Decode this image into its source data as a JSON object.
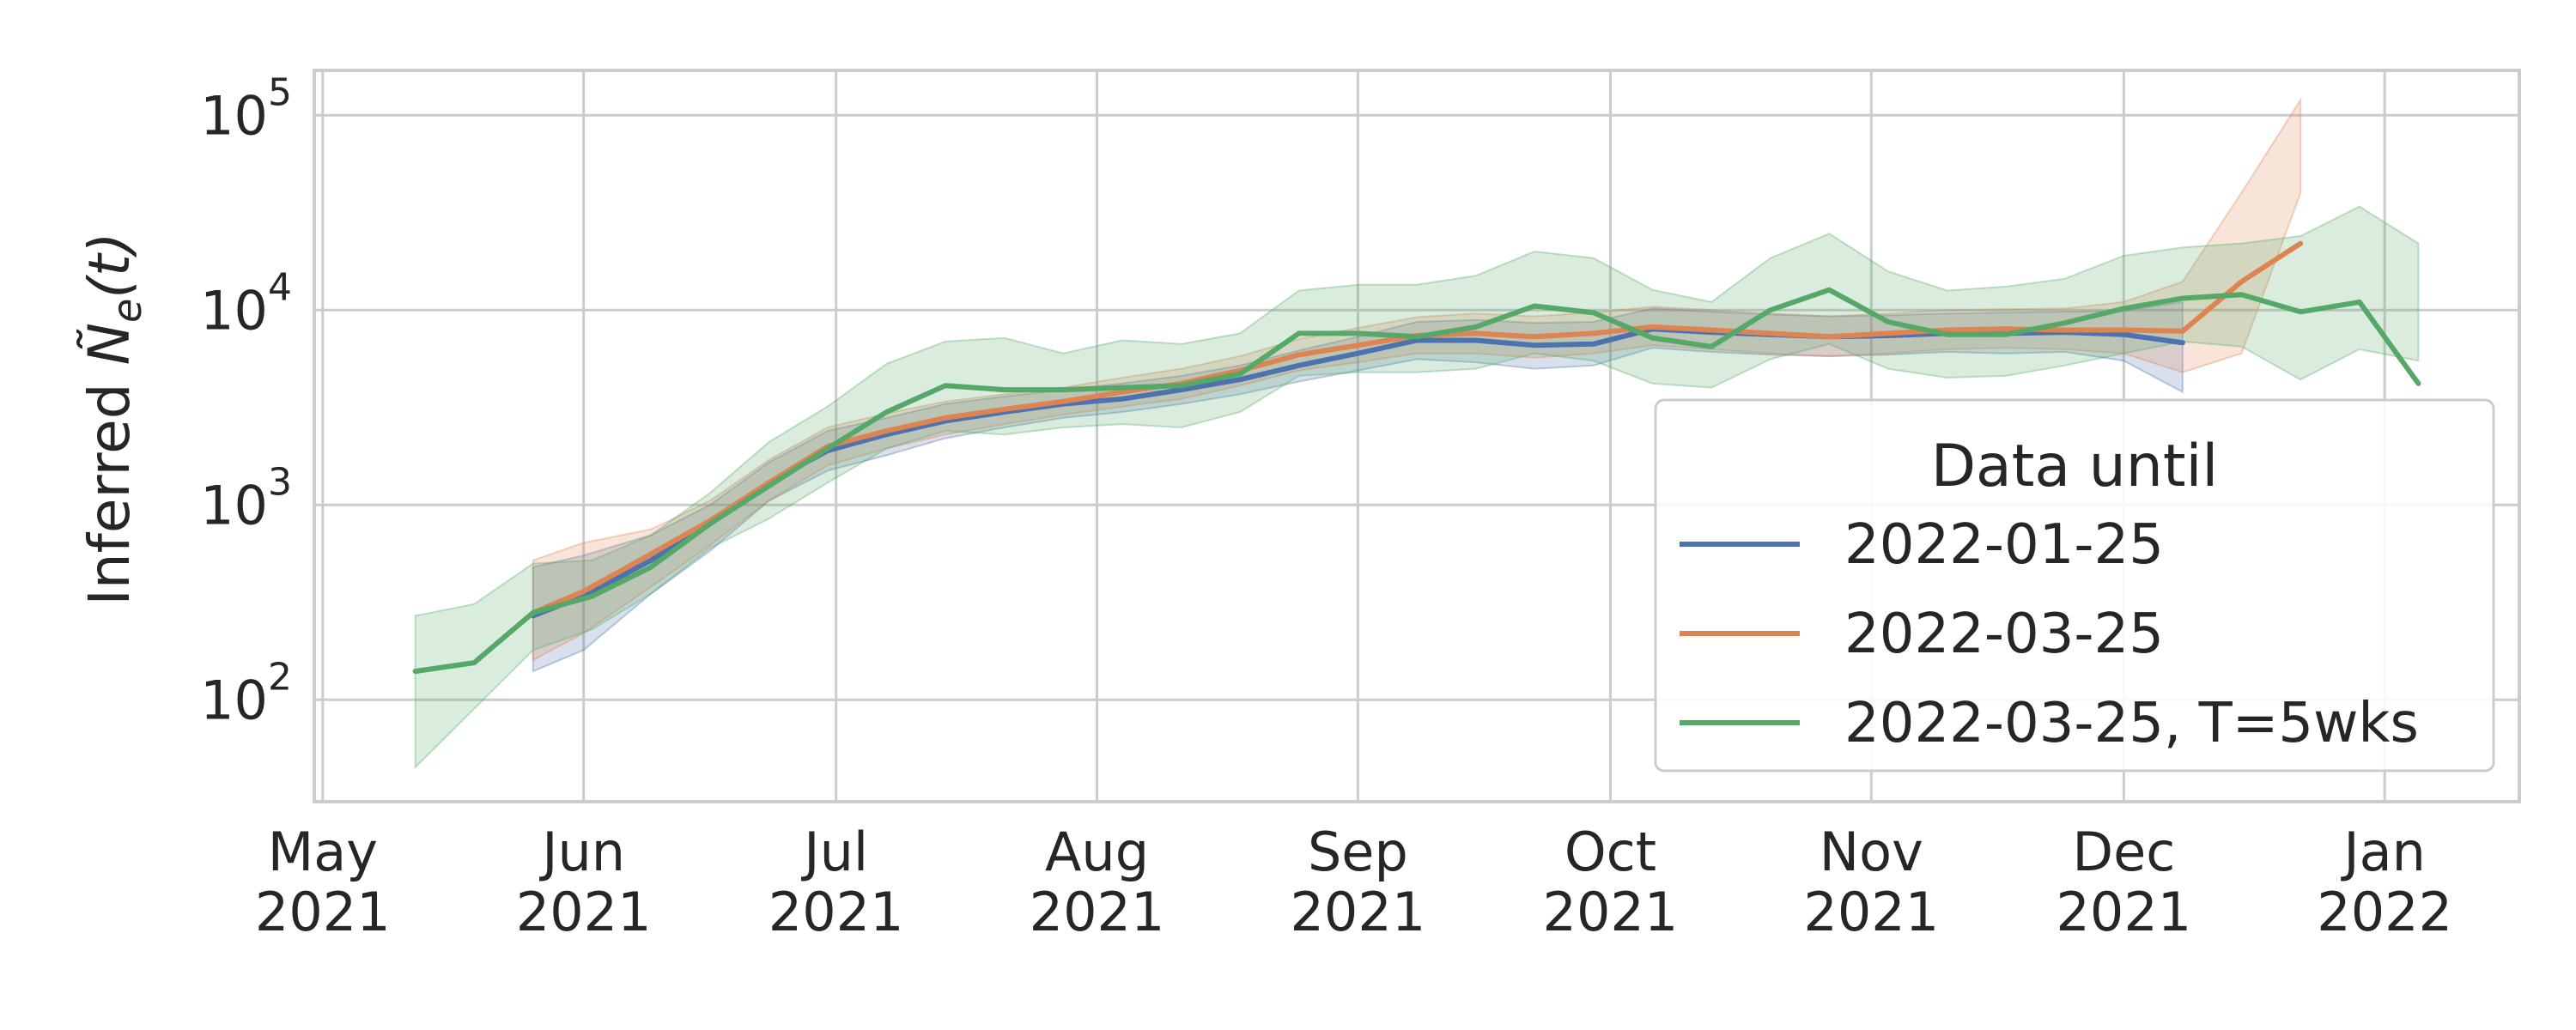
{
  "chart_data": {
    "type": "line",
    "title": "",
    "xlabel": "",
    "ylabel": {
      "prefix": "Inferred ",
      "symbol": "Ñ",
      "subscript": "e",
      "suffix": "(t)"
    },
    "yscale": "log",
    "ylim": [
      30,
      170000
    ],
    "xlim": [
      "2021-04-30",
      "2022-01-17"
    ],
    "grid": true,
    "x_ticks": [
      {
        "date": "2021-05-01",
        "label": [
          "May",
          "2021"
        ]
      },
      {
        "date": "2021-06-01",
        "label": [
          "Jun",
          "2021"
        ]
      },
      {
        "date": "2021-07-01",
        "label": [
          "Jul",
          "2021"
        ]
      },
      {
        "date": "2021-08-01",
        "label": [
          "Aug",
          "2021"
        ]
      },
      {
        "date": "2021-09-01",
        "label": [
          "Sep",
          "2021"
        ]
      },
      {
        "date": "2021-10-01",
        "label": [
          "Oct",
          "2021"
        ]
      },
      {
        "date": "2021-11-01",
        "label": [
          "Nov",
          "2021"
        ]
      },
      {
        "date": "2021-12-01",
        "label": [
          "Dec",
          "2021"
        ]
      },
      {
        "date": "2022-01-01",
        "label": [
          "Jan",
          "2022"
        ]
      }
    ],
    "y_ticks": [
      {
        "value": 100,
        "base": "10",
        "exp": "2"
      },
      {
        "value": 1000,
        "base": "10",
        "exp": "3"
      },
      {
        "value": 10000,
        "base": "10",
        "exp": "4"
      },
      {
        "value": 100000,
        "base": "10",
        "exp": "5"
      }
    ],
    "legend": {
      "title": "Data until",
      "location": "lower-right"
    },
    "series": [
      {
        "name": "2022-01-25",
        "color": "#4c72b0",
        "points": [
          {
            "date": "2021-05-26",
            "value": 270,
            "low": 140,
            "high": 480
          },
          {
            "date": "2021-06-01",
            "value": 340,
            "low": 180,
            "high": 550
          },
          {
            "date": "2021-06-09",
            "value": 520,
            "low": 350,
            "high": 700
          },
          {
            "date": "2021-06-16",
            "value": 800,
            "low": 580,
            "high": 1000
          },
          {
            "date": "2021-06-23",
            "value": 1300,
            "low": 1050,
            "high": 1650
          },
          {
            "date": "2021-06-30",
            "value": 1900,
            "low": 1500,
            "high": 2400
          },
          {
            "date": "2021-07-07",
            "value": 2300,
            "low": 1800,
            "high": 2800
          },
          {
            "date": "2021-07-14",
            "value": 2700,
            "low": 2200,
            "high": 3300
          },
          {
            "date": "2021-07-21",
            "value": 3000,
            "low": 2500,
            "high": 3600
          },
          {
            "date": "2021-07-28",
            "value": 3300,
            "low": 2800,
            "high": 3900
          },
          {
            "date": "2021-08-04",
            "value": 3500,
            "low": 3000,
            "high": 4200
          },
          {
            "date": "2021-08-11",
            "value": 3900,
            "low": 3300,
            "high": 4600
          },
          {
            "date": "2021-08-18",
            "value": 4400,
            "low": 3700,
            "high": 5200
          },
          {
            "date": "2021-08-25",
            "value": 5200,
            "low": 4300,
            "high": 6200
          },
          {
            "date": "2021-09-01",
            "value": 6000,
            "low": 4900,
            "high": 7300
          },
          {
            "date": "2021-09-08",
            "value": 7000,
            "low": 5600,
            "high": 8700
          },
          {
            "date": "2021-09-15",
            "value": 7000,
            "low": 5400,
            "high": 8900
          },
          {
            "date": "2021-09-22",
            "value": 6600,
            "low": 5000,
            "high": 8600
          },
          {
            "date": "2021-09-29",
            "value": 6700,
            "low": 5200,
            "high": 8700
          },
          {
            "date": "2021-10-06",
            "value": 8000,
            "low": 6400,
            "high": 10200
          },
          {
            "date": "2021-10-13",
            "value": 7700,
            "low": 6100,
            "high": 9800
          },
          {
            "date": "2021-10-20",
            "value": 7500,
            "low": 5900,
            "high": 9500
          },
          {
            "date": "2021-10-27",
            "value": 7300,
            "low": 5800,
            "high": 9300
          },
          {
            "date": "2021-11-03",
            "value": 7400,
            "low": 5900,
            "high": 9400
          },
          {
            "date": "2021-11-10",
            "value": 7600,
            "low": 6100,
            "high": 9600
          },
          {
            "date": "2021-11-17",
            "value": 7600,
            "low": 6000,
            "high": 9700
          },
          {
            "date": "2021-11-24",
            "value": 7700,
            "low": 6100,
            "high": 9800
          },
          {
            "date": "2021-12-01",
            "value": 7500,
            "low": 5500,
            "high": 9900
          },
          {
            "date": "2021-12-08",
            "value": 6800,
            "low": 3800,
            "high": 11000
          }
        ]
      },
      {
        "name": "2022-03-25",
        "color": "#dd8452",
        "points": [
          {
            "date": "2021-05-26",
            "value": 280,
            "low": 160,
            "high": 520
          },
          {
            "date": "2021-06-01",
            "value": 360,
            "low": 220,
            "high": 640
          },
          {
            "date": "2021-06-09",
            "value": 560,
            "low": 380,
            "high": 750
          },
          {
            "date": "2021-06-16",
            "value": 830,
            "low": 620,
            "high": 1050
          },
          {
            "date": "2021-06-23",
            "value": 1300,
            "low": 1050,
            "high": 1700
          },
          {
            "date": "2021-06-30",
            "value": 2000,
            "low": 1600,
            "high": 2500
          },
          {
            "date": "2021-07-07",
            "value": 2400,
            "low": 1950,
            "high": 2950
          },
          {
            "date": "2021-07-14",
            "value": 2800,
            "low": 2300,
            "high": 3400
          },
          {
            "date": "2021-07-21",
            "value": 3100,
            "low": 2600,
            "high": 3700
          },
          {
            "date": "2021-07-28",
            "value": 3400,
            "low": 2900,
            "high": 4000
          },
          {
            "date": "2021-08-04",
            "value": 3800,
            "low": 3200,
            "high": 4500
          },
          {
            "date": "2021-08-11",
            "value": 4200,
            "low": 3500,
            "high": 5000
          },
          {
            "date": "2021-08-18",
            "value": 4900,
            "low": 4100,
            "high": 5800
          },
          {
            "date": "2021-08-25",
            "value": 5900,
            "low": 4900,
            "high": 7100
          },
          {
            "date": "2021-09-01",
            "value": 6600,
            "low": 5400,
            "high": 8100
          },
          {
            "date": "2021-09-08",
            "value": 7400,
            "low": 6000,
            "high": 9200
          },
          {
            "date": "2021-09-15",
            "value": 7600,
            "low": 6000,
            "high": 9600
          },
          {
            "date": "2021-09-22",
            "value": 7300,
            "low": 5700,
            "high": 9300
          },
          {
            "date": "2021-09-29",
            "value": 7600,
            "low": 6000,
            "high": 9700
          },
          {
            "date": "2021-10-06",
            "value": 8200,
            "low": 6600,
            "high": 10400
          },
          {
            "date": "2021-10-13",
            "value": 7900,
            "low": 6300,
            "high": 10000
          },
          {
            "date": "2021-10-20",
            "value": 7600,
            "low": 6000,
            "high": 9600
          },
          {
            "date": "2021-10-27",
            "value": 7300,
            "low": 5800,
            "high": 9300
          },
          {
            "date": "2021-11-03",
            "value": 7600,
            "low": 6000,
            "high": 9600
          },
          {
            "date": "2021-11-10",
            "value": 7900,
            "low": 6300,
            "high": 10000
          },
          {
            "date": "2021-11-17",
            "value": 8000,
            "low": 6400,
            "high": 10100
          },
          {
            "date": "2021-11-24",
            "value": 7900,
            "low": 6300,
            "high": 10200
          },
          {
            "date": "2021-12-01",
            "value": 7900,
            "low": 6000,
            "high": 11000
          },
          {
            "date": "2021-12-08",
            "value": 7800,
            "low": 4800,
            "high": 14000
          },
          {
            "date": "2021-12-15",
            "value": 14000,
            "low": 6000,
            "high": 40000
          },
          {
            "date": "2021-12-22",
            "value": 22000,
            "low": 40000,
            "high": 120000
          }
        ]
      },
      {
        "name": "2022-03-25, T=5wks",
        "color": "#55a868",
        "points": [
          {
            "date": "2021-05-12",
            "value": 140,
            "low": 45,
            "high": 270
          },
          {
            "date": "2021-05-19",
            "value": 155,
            "low": 90,
            "high": 310
          },
          {
            "date": "2021-05-26",
            "value": 280,
            "low": 180,
            "high": 500
          },
          {
            "date": "2021-06-02",
            "value": 340,
            "low": 230,
            "high": 520
          },
          {
            "date": "2021-06-09",
            "value": 480,
            "low": 350,
            "high": 700
          },
          {
            "date": "2021-06-16",
            "value": 800,
            "low": 600,
            "high": 1150
          },
          {
            "date": "2021-06-23",
            "value": 1250,
            "low": 850,
            "high": 2100
          },
          {
            "date": "2021-06-30",
            "value": 1950,
            "low": 1300,
            "high": 3200
          },
          {
            "date": "2021-07-07",
            "value": 3000,
            "low": 1950,
            "high": 5300
          },
          {
            "date": "2021-07-14",
            "value": 4100,
            "low": 2400,
            "high": 6900
          },
          {
            "date": "2021-07-21",
            "value": 3900,
            "low": 2300,
            "high": 7200
          },
          {
            "date": "2021-07-28",
            "value": 3900,
            "low": 2500,
            "high": 6000
          },
          {
            "date": "2021-08-04",
            "value": 4000,
            "low": 2600,
            "high": 7000
          },
          {
            "date": "2021-08-11",
            "value": 4100,
            "low": 2500,
            "high": 6700
          },
          {
            "date": "2021-08-18",
            "value": 4700,
            "low": 3000,
            "high": 7600
          },
          {
            "date": "2021-08-25",
            "value": 7600,
            "low": 4600,
            "high": 12600
          },
          {
            "date": "2021-09-01",
            "value": 7600,
            "low": 4800,
            "high": 13500
          },
          {
            "date": "2021-09-08",
            "value": 7300,
            "low": 4800,
            "high": 13500
          },
          {
            "date": "2021-09-15",
            "value": 8200,
            "low": 5000,
            "high": 15000
          },
          {
            "date": "2021-09-22",
            "value": 10500,
            "low": 6000,
            "high": 20000
          },
          {
            "date": "2021-09-29",
            "value": 9700,
            "low": 5500,
            "high": 18500
          },
          {
            "date": "2021-10-06",
            "value": 7200,
            "low": 4200,
            "high": 12700
          },
          {
            "date": "2021-10-13",
            "value": 6500,
            "low": 4000,
            "high": 11000
          },
          {
            "date": "2021-10-20",
            "value": 10000,
            "low": 5600,
            "high": 18500
          },
          {
            "date": "2021-10-27",
            "value": 12700,
            "low": 6700,
            "high": 24700
          },
          {
            "date": "2021-11-03",
            "value": 8700,
            "low": 5000,
            "high": 15800
          },
          {
            "date": "2021-11-10",
            "value": 7500,
            "low": 4500,
            "high": 12600
          },
          {
            "date": "2021-11-17",
            "value": 7500,
            "low": 4600,
            "high": 13200
          },
          {
            "date": "2021-11-24",
            "value": 8600,
            "low": 5200,
            "high": 14500
          },
          {
            "date": "2021-12-01",
            "value": 10200,
            "low": 6000,
            "high": 19000
          },
          {
            "date": "2021-12-08",
            "value": 11500,
            "low": 6900,
            "high": 21000
          },
          {
            "date": "2021-12-15",
            "value": 12000,
            "low": 6500,
            "high": 22000
          },
          {
            "date": "2021-12-22",
            "value": 9800,
            "low": 4400,
            "high": 24000
          },
          {
            "date": "2021-12-29",
            "value": 11000,
            "low": 6300,
            "high": 34000
          },
          {
            "date": "2022-01-05",
            "value": 4200,
            "low": 5500,
            "high": 22000
          }
        ]
      }
    ]
  }
}
